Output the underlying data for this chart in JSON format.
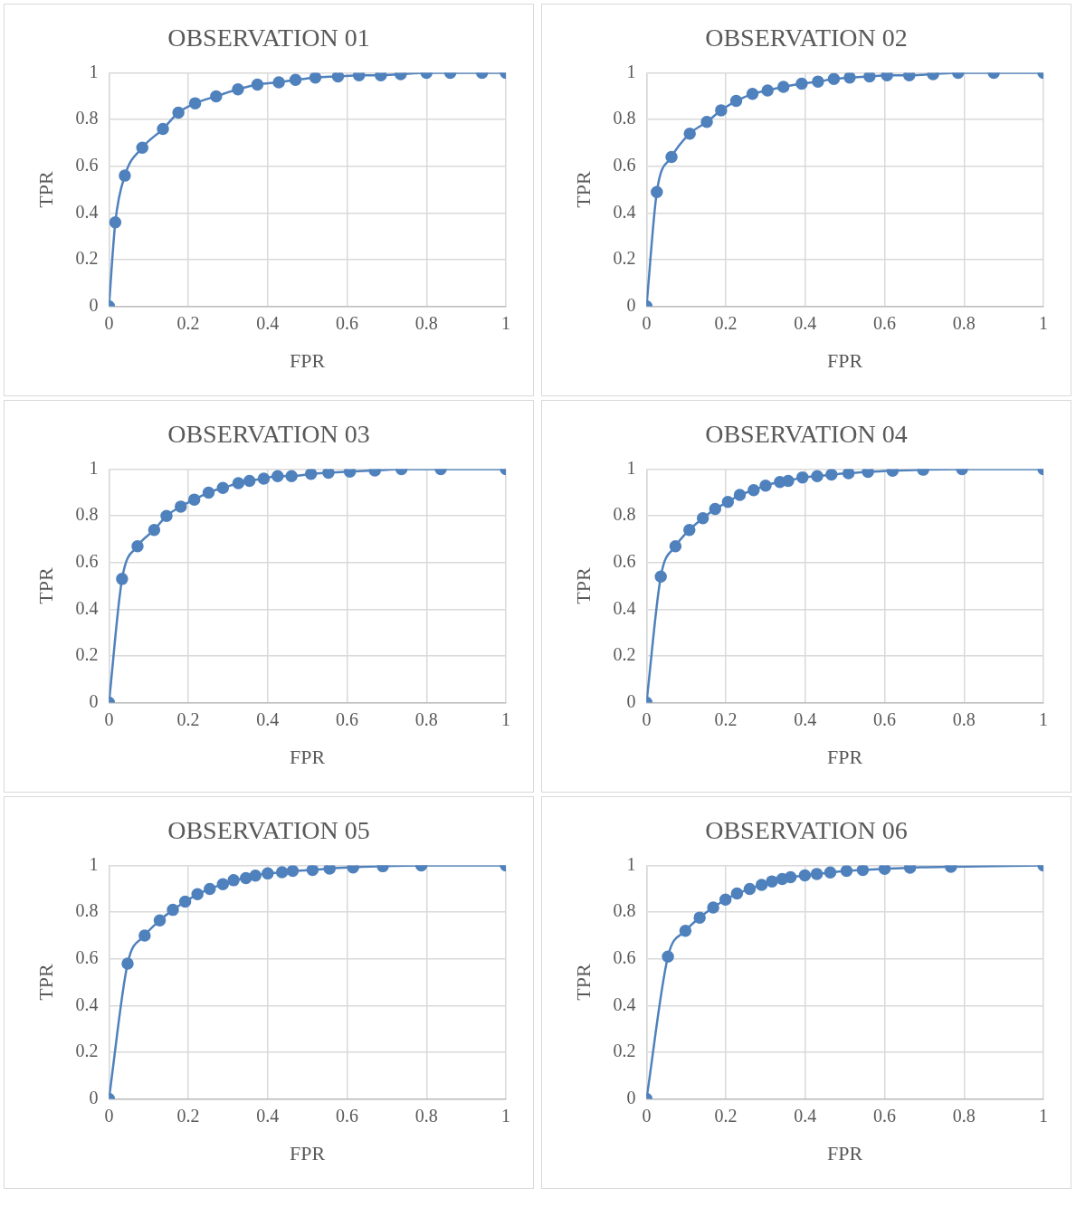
{
  "chart_data": [
    {
      "type": "line",
      "title": "OBSERVATION 01",
      "xlabel": "FPR",
      "ylabel": "TPR",
      "color": "#4f81bd",
      "marker": "circle",
      "grid": true,
      "xlim": [
        0,
        1
      ],
      "ylim": [
        0,
        1
      ],
      "xticks": [
        0,
        0.2,
        0.4,
        0.6,
        0.8,
        1
      ],
      "yticks": [
        0,
        0.2,
        0.4,
        0.6,
        0.8,
        1
      ],
      "x": [
        0,
        0.016,
        0.04,
        0.084,
        0.136,
        0.175,
        0.217,
        0.27,
        0.325,
        0.374,
        0.428,
        0.47,
        0.52,
        0.577,
        0.63,
        0.685,
        0.735,
        0.8,
        0.86,
        0.94,
        1
      ],
      "values": [
        0,
        0.36,
        0.56,
        0.68,
        0.76,
        0.83,
        0.87,
        0.9,
        0.93,
        0.95,
        0.96,
        0.97,
        0.98,
        0.985,
        0.99,
        0.99,
        0.995,
        1,
        1,
        1,
        1
      ]
    },
    {
      "type": "line",
      "title": "OBSERVATION 02",
      "xlabel": "FPR",
      "ylabel": "TPR",
      "color": "#4f81bd",
      "marker": "circle",
      "grid": true,
      "xlim": [
        0,
        1
      ],
      "ylim": [
        0,
        1
      ],
      "xticks": [
        0,
        0.2,
        0.4,
        0.6,
        0.8,
        1
      ],
      "yticks": [
        0,
        0.2,
        0.4,
        0.6,
        0.8,
        1
      ],
      "x": [
        0,
        0.026,
        0.063,
        0.109,
        0.152,
        0.188,
        0.226,
        0.267,
        0.305,
        0.345,
        0.391,
        0.432,
        0.472,
        0.512,
        0.562,
        0.606,
        0.662,
        0.722,
        0.785,
        0.875,
        1
      ],
      "values": [
        0,
        0.49,
        0.64,
        0.74,
        0.79,
        0.84,
        0.88,
        0.91,
        0.925,
        0.94,
        0.954,
        0.963,
        0.974,
        0.98,
        0.985,
        0.99,
        0.99,
        0.995,
        1,
        1,
        1
      ]
    },
    {
      "type": "line",
      "title": "OBSERVATION 03",
      "xlabel": "FPR",
      "ylabel": "TPR",
      "color": "#4f81bd",
      "marker": "circle",
      "grid": true,
      "xlim": [
        0,
        1
      ],
      "ylim": [
        0,
        1
      ],
      "xticks": [
        0,
        0.2,
        0.4,
        0.6,
        0.8,
        1
      ],
      "yticks": [
        0,
        0.2,
        0.4,
        0.6,
        0.8,
        1
      ],
      "x": [
        0,
        0.033,
        0.072,
        0.114,
        0.145,
        0.181,
        0.215,
        0.251,
        0.287,
        0.326,
        0.354,
        0.39,
        0.425,
        0.46,
        0.509,
        0.553,
        0.607,
        0.67,
        0.737,
        0.836,
        1
      ],
      "values": [
        0,
        0.53,
        0.67,
        0.74,
        0.8,
        0.84,
        0.87,
        0.9,
        0.92,
        0.94,
        0.95,
        0.96,
        0.97,
        0.97,
        0.98,
        0.985,
        0.99,
        0.995,
        1,
        1,
        1
      ]
    },
    {
      "type": "line",
      "title": "OBSERVATION 04",
      "xlabel": "FPR",
      "ylabel": "TPR",
      "color": "#4f81bd",
      "marker": "circle",
      "grid": true,
      "xlim": [
        0,
        1
      ],
      "ylim": [
        0,
        1
      ],
      "xticks": [
        0,
        0.2,
        0.4,
        0.6,
        0.8,
        1
      ],
      "yticks": [
        0,
        0.2,
        0.4,
        0.6,
        0.8,
        1
      ],
      "x": [
        0,
        0.036,
        0.073,
        0.108,
        0.142,
        0.173,
        0.205,
        0.235,
        0.27,
        0.3,
        0.336,
        0.357,
        0.393,
        0.43,
        0.466,
        0.509,
        0.558,
        0.62,
        0.697,
        0.795,
        1
      ],
      "values": [
        0,
        0.54,
        0.67,
        0.74,
        0.79,
        0.83,
        0.86,
        0.89,
        0.91,
        0.93,
        0.945,
        0.95,
        0.965,
        0.97,
        0.977,
        0.983,
        0.989,
        0.994,
        0.998,
        1,
        1
      ]
    },
    {
      "type": "line",
      "title": "OBSERVATION 05",
      "xlabel": "FPR",
      "ylabel": "TPR",
      "color": "#4f81bd",
      "marker": "circle",
      "grid": true,
      "xlim": [
        0,
        1
      ],
      "ylim": [
        0,
        1
      ],
      "xticks": [
        0,
        0.2,
        0.4,
        0.6,
        0.8,
        1
      ],
      "yticks": [
        0,
        0.2,
        0.4,
        0.6,
        0.8,
        1
      ],
      "x": [
        0,
        0.047,
        0.09,
        0.128,
        0.161,
        0.192,
        0.223,
        0.254,
        0.287,
        0.314,
        0.345,
        0.369,
        0.4,
        0.436,
        0.463,
        0.513,
        0.556,
        0.615,
        0.69,
        0.787,
        1
      ],
      "values": [
        0,
        0.58,
        0.7,
        0.765,
        0.81,
        0.845,
        0.877,
        0.9,
        0.92,
        0.937,
        0.946,
        0.957,
        0.966,
        0.971,
        0.977,
        0.981,
        0.987,
        0.992,
        0.997,
        1,
        1
      ]
    },
    {
      "type": "line",
      "title": "OBSERVATION 06",
      "xlabel": "FPR",
      "ylabel": "TPR",
      "color": "#4f81bd",
      "marker": "circle",
      "grid": true,
      "xlim": [
        0,
        1
      ],
      "ylim": [
        0,
        1
      ],
      "xticks": [
        0,
        0.2,
        0.4,
        0.6,
        0.8,
        1
      ],
      "yticks": [
        0,
        0.2,
        0.4,
        0.6,
        0.8,
        1
      ],
      "x": [
        0,
        0.054,
        0.098,
        0.134,
        0.168,
        0.199,
        0.228,
        0.26,
        0.29,
        0.316,
        0.342,
        0.363,
        0.399,
        0.429,
        0.463,
        0.504,
        0.545,
        0.6,
        0.664,
        0.767,
        1
      ],
      "values": [
        0,
        0.61,
        0.72,
        0.777,
        0.82,
        0.854,
        0.88,
        0.9,
        0.917,
        0.932,
        0.942,
        0.95,
        0.958,
        0.964,
        0.97,
        0.977,
        0.981,
        0.986,
        0.991,
        0.995,
        1
      ]
    }
  ]
}
